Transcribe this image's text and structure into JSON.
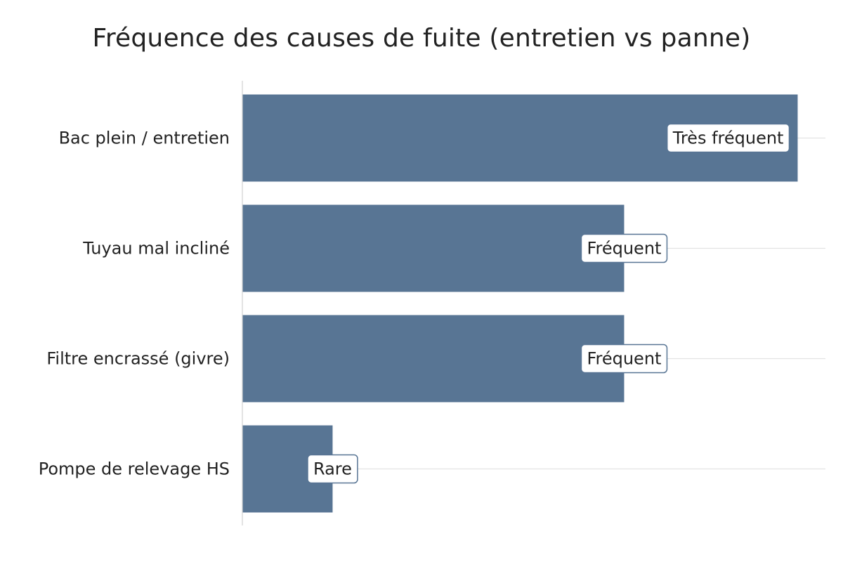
{
  "chart_data": {
    "type": "bar",
    "orientation": "horizontal",
    "title": "Fréquence des causes de fuite (entretien vs panne)",
    "xlabel": "",
    "ylabel": "",
    "categories": [
      "Bac plein / entretien",
      "Tuyau mal incliné",
      "Filtre encrassé (givre)",
      "Pompe de relevage HS"
    ],
    "values": [
      4,
      2.75,
      2.75,
      0.65
    ],
    "data_labels": [
      "Très fréquent",
      "Fréquent",
      "Fréquent",
      "Rare"
    ],
    "xlim": [
      0,
      4.2
    ],
    "grid": true,
    "legend": "none",
    "colors": {
      "bar": "#587594",
      "grid": "#e3e3e3",
      "axis": "#d0d0d0",
      "label_border": "#587594",
      "label_bg": "#ffffff"
    }
  }
}
